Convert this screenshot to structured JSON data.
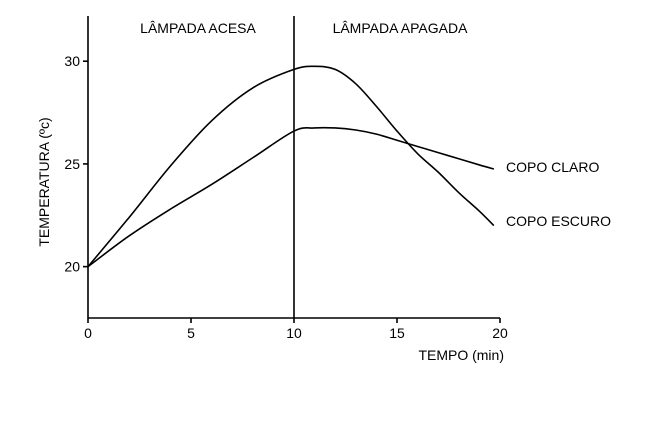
{
  "chart_data": {
    "type": "line",
    "title": "",
    "xlabel": "TEMPO (min)",
    "ylabel": "TEMPERATURA (ºc)",
    "xlim": [
      0,
      20
    ],
    "ylim": [
      17.5,
      32.2
    ],
    "xticks": [
      0,
      5,
      10,
      15,
      20
    ],
    "xtick_labels": [
      "0",
      "5",
      "10",
      "15",
      "20"
    ],
    "yticks": [
      20,
      25,
      30
    ],
    "ytick_labels": [
      "20",
      "25",
      "30"
    ],
    "grid": false,
    "legend": "none",
    "divider": {
      "x": 10
    },
    "regions": [
      {
        "label": "LÂMPADA ACESA"
      },
      {
        "label": "LÂMPADA APAGADA"
      }
    ],
    "series": [
      {
        "name": "COPO CLARO",
        "x": [
          0,
          2,
          4,
          6,
          8,
          10,
          11,
          12,
          13,
          14,
          15,
          16,
          17,
          18,
          19,
          19.7
        ],
        "y": [
          20.0,
          21.5,
          22.8,
          24.0,
          25.3,
          26.6,
          26.75,
          26.75,
          26.65,
          26.45,
          26.15,
          25.85,
          25.55,
          25.25,
          24.95,
          24.75
        ]
      },
      {
        "name": "COPO ESCURO",
        "x": [
          0,
          2,
          4,
          6,
          8,
          10,
          11,
          12,
          13,
          14,
          15,
          16,
          17,
          18,
          19,
          19.7
        ],
        "y": [
          20.0,
          22.4,
          24.9,
          27.1,
          28.7,
          29.6,
          29.75,
          29.6,
          28.9,
          27.8,
          26.6,
          25.5,
          24.6,
          23.6,
          22.7,
          22.0
        ]
      }
    ]
  }
}
